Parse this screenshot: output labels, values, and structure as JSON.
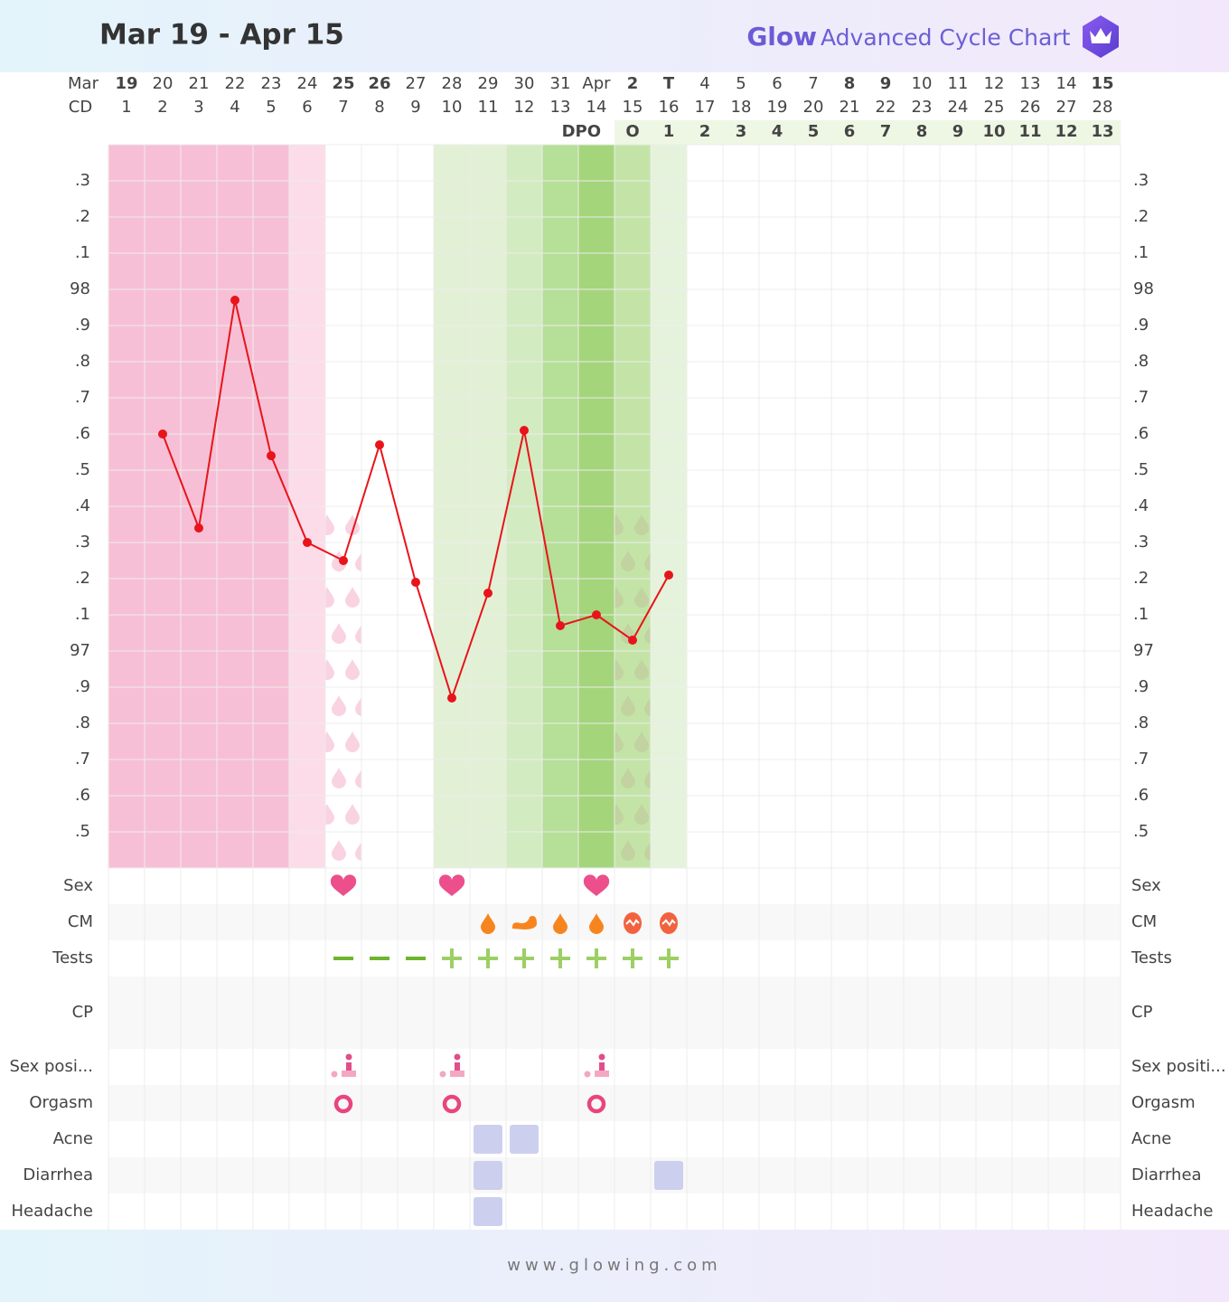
{
  "header": {
    "title": "Mar 19 - Apr 15",
    "brand": "Glow",
    "product": "Advanced Cycle Chart"
  },
  "date_row": {
    "label": "Mar",
    "dates": [
      "19",
      "20",
      "21",
      "22",
      "23",
      "24",
      "25",
      "26",
      "27",
      "28",
      "29",
      "30",
      "31",
      "Apr",
      "2",
      "T",
      "4",
      "5",
      "6",
      "7",
      "8",
      "9",
      "10",
      "11",
      "12",
      "13",
      "14",
      "15"
    ],
    "colors": [
      "#e8544c",
      "#888",
      "#888",
      "#888",
      "#888",
      "#888",
      "#e8544c",
      "#e8544c",
      "#888",
      "#888",
      "#888",
      "#888",
      "#888",
      "#888",
      "#e8544c",
      "#5a57c8",
      "#888",
      "#888",
      "#888",
      "#888",
      "#e8544c",
      "#e8544c",
      "#888",
      "#888",
      "#888",
      "#888",
      "#888",
      "#e8544c"
    ]
  },
  "cd_row": {
    "label": "CD",
    "days": [
      1,
      2,
      3,
      4,
      5,
      6,
      7,
      8,
      9,
      10,
      11,
      12,
      13,
      14,
      15,
      16,
      17,
      18,
      19,
      20,
      21,
      22,
      23,
      24,
      25,
      26,
      27,
      28
    ]
  },
  "dpo_row": {
    "label": "DPO",
    "values": [
      null,
      null,
      null,
      null,
      null,
      null,
      null,
      null,
      null,
      null,
      null,
      null,
      null,
      null,
      "O",
      1,
      2,
      3,
      4,
      5,
      6,
      7,
      8,
      9,
      10,
      11,
      12,
      13
    ]
  },
  "chart_data": {
    "type": "line",
    "color": "#e8141b",
    "values": [
      null,
      97.6,
      97.34,
      97.97,
      97.54,
      97.3,
      97.25,
      97.57,
      97.19,
      96.87,
      97.16,
      97.61,
      97.07,
      97.1,
      97.03,
      97.21,
      null,
      null,
      null,
      null,
      null,
      null,
      null,
      null,
      null,
      null,
      null,
      null
    ],
    "ylim": [
      96.4,
      98.4
    ],
    "yticks": [
      {
        "value": 98.3,
        "label": ".3"
      },
      {
        "value": 98.2,
        "label": ".2"
      },
      {
        "value": 98.1,
        "label": ".1"
      },
      98,
      {
        "value": 97.9,
        "label": ".9"
      },
      {
        "value": 97.8,
        "label": ".8"
      },
      {
        "value": 97.7,
        "label": ".7"
      },
      {
        "value": 97.6,
        "label": ".6"
      },
      {
        "value": 97.5,
        "label": ".5"
      },
      {
        "value": 97.4,
        "label": ".4"
      },
      {
        "value": 97.3,
        "label": ".3"
      },
      {
        "value": 97.2,
        "label": ".2"
      },
      {
        "value": 97.1,
        "label": ".1"
      },
      97,
      {
        "value": 96.9,
        "label": ".9"
      },
      {
        "value": 96.8,
        "label": ".8"
      },
      {
        "value": 96.7,
        "label": ".7"
      },
      {
        "value": 96.6,
        "label": ".6"
      },
      {
        "value": 96.5,
        "label": ".5"
      }
    ],
    "grid": true
  },
  "rows": [
    {
      "label": "Sex",
      "right_label": "Sex",
      "marks": {
        "heart": [
          7,
          10,
          14
        ]
      }
    },
    {
      "label": "CM",
      "right_label": "CM",
      "marks": {
        "drop": [
          11,
          13,
          14
        ],
        "blob": [
          12
        ],
        "egg": [
          15,
          16
        ]
      }
    },
    {
      "label": "Tests",
      "right_label": "Tests",
      "marks": {
        "minus": [
          7,
          8,
          9
        ],
        "plus": [
          10,
          11,
          12,
          13,
          14,
          15,
          16
        ]
      }
    },
    {
      "label": "CP",
      "right_label": "CP"
    },
    {
      "label": "Sex posi...",
      "right_label": "Sex positi...",
      "marks": {
        "position": [
          7,
          10,
          14
        ]
      }
    },
    {
      "label": "Orgasm",
      "right_label": "Orgasm",
      "marks": {
        "ring": [
          7,
          10,
          14
        ]
      }
    },
    {
      "label": "Acne",
      "right_label": "Acne",
      "marks": {
        "square": [
          11,
          12
        ]
      }
    },
    {
      "label": "Diarrhea",
      "right_label": "Diarrhea",
      "marks": {
        "square": [
          11,
          16
        ]
      }
    },
    {
      "label": "Headache",
      "right_label": "Headache",
      "marks": {
        "square": [
          11
        ]
      }
    }
  ],
  "footer": "www.glowing.com"
}
